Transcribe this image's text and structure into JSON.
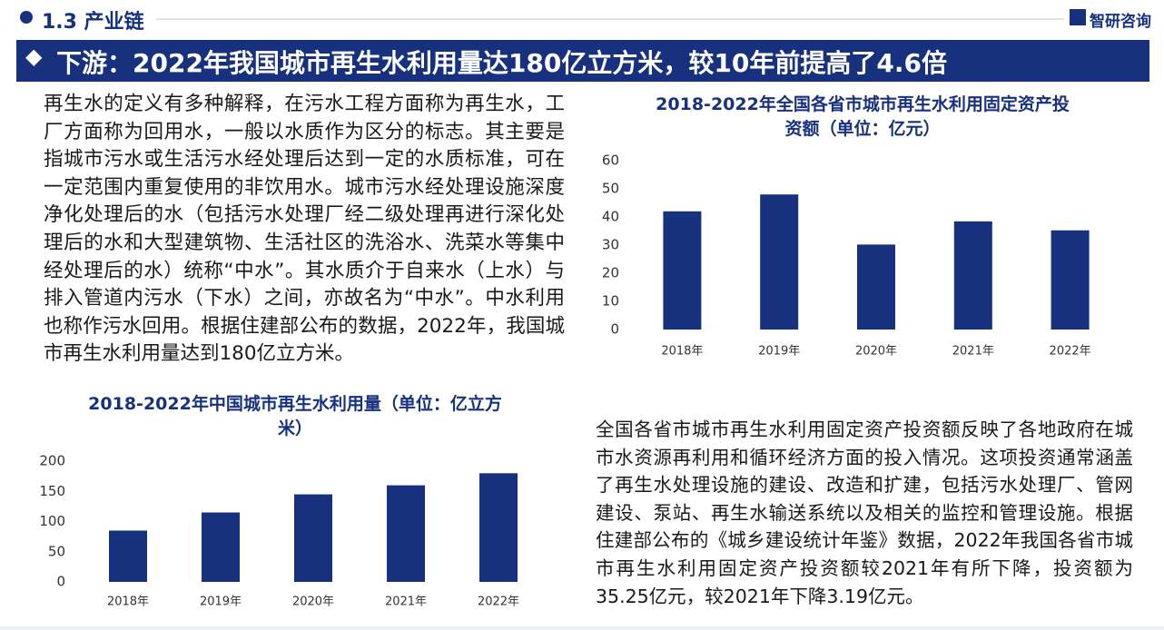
{
  "header": {
    "section": "1.3 产业链",
    "logo": "智研咨询",
    "title": "下游：2022年我国城市再生水利用量达180亿立方米，较10年前提高了4.6倍"
  },
  "paragraphs": [
    "再生水的定义有多种解释，在污水工程方面称为再生水，工厂方面称为回用水，一般以水质作为区分的标志。其主要是指城市污水或生活污水经处理后达到一定的水质标准，可在一定范围内重复使用的非饮用水。城市污水经处理设施深度净化处理后的水（包括污水处理厂经二级处理再进行深化处理后的水和大型建筑物、生活社区的洗浴水、洗菜水等集中经处理后的水）统称“中水”。其水质介于自来水（上水）与排入管道内污水（下水）之间，亦故名为“中水”。中水利用也称作污水回用。根据住建部公布的数据，2022年，我国城市再生水利用量达到180亿立方米。",
    "全国各省市城市再生水利用固定资产投资额反映了各地政府在城市水资源再利用和循环经济方面的投入情况。这项投资通常涵盖了再生水处理设施的建设、改造和扩建，包括污水处理厂、管网建设、泵站、再生水输送系统以及相关的监控和管理设施。根据住建部公布的《城乡建设统计年鉴》数据，2022年我国各省市城市再生水利用固定资产投资额较2021年有所下降，投资额为35.25亿元，较2021年下降3.19亿元。"
  ],
  "chart_data": [
    {
      "type": "bar",
      "title": "2018-2022年中国城市再生水利用量（单位：亿立方米）",
      "categories": [
        "2018年",
        "2019年",
        "2020年",
        "2021年",
        "2022年"
      ],
      "values": [
        85,
        115,
        145,
        160,
        180
      ],
      "color": "#17317f",
      "ylim": [
        0,
        200
      ],
      "yticks": [
        0,
        50,
        100,
        150,
        200
      ],
      "grid": false
    },
    {
      "type": "bar",
      "title": "2018-2022年全国各省市城市再生水利用固定资产投资额（单位：亿元）",
      "categories": [
        "2018年",
        "2019年",
        "2020年",
        "2021年",
        "2022年"
      ],
      "values": [
        42,
        48,
        30.2,
        38.44,
        35.25
      ],
      "color": "#17317f",
      "ylim": [
        0,
        60
      ],
      "yticks": [
        0,
        10,
        20,
        30,
        40,
        50,
        60
      ],
      "grid": false
    }
  ]
}
